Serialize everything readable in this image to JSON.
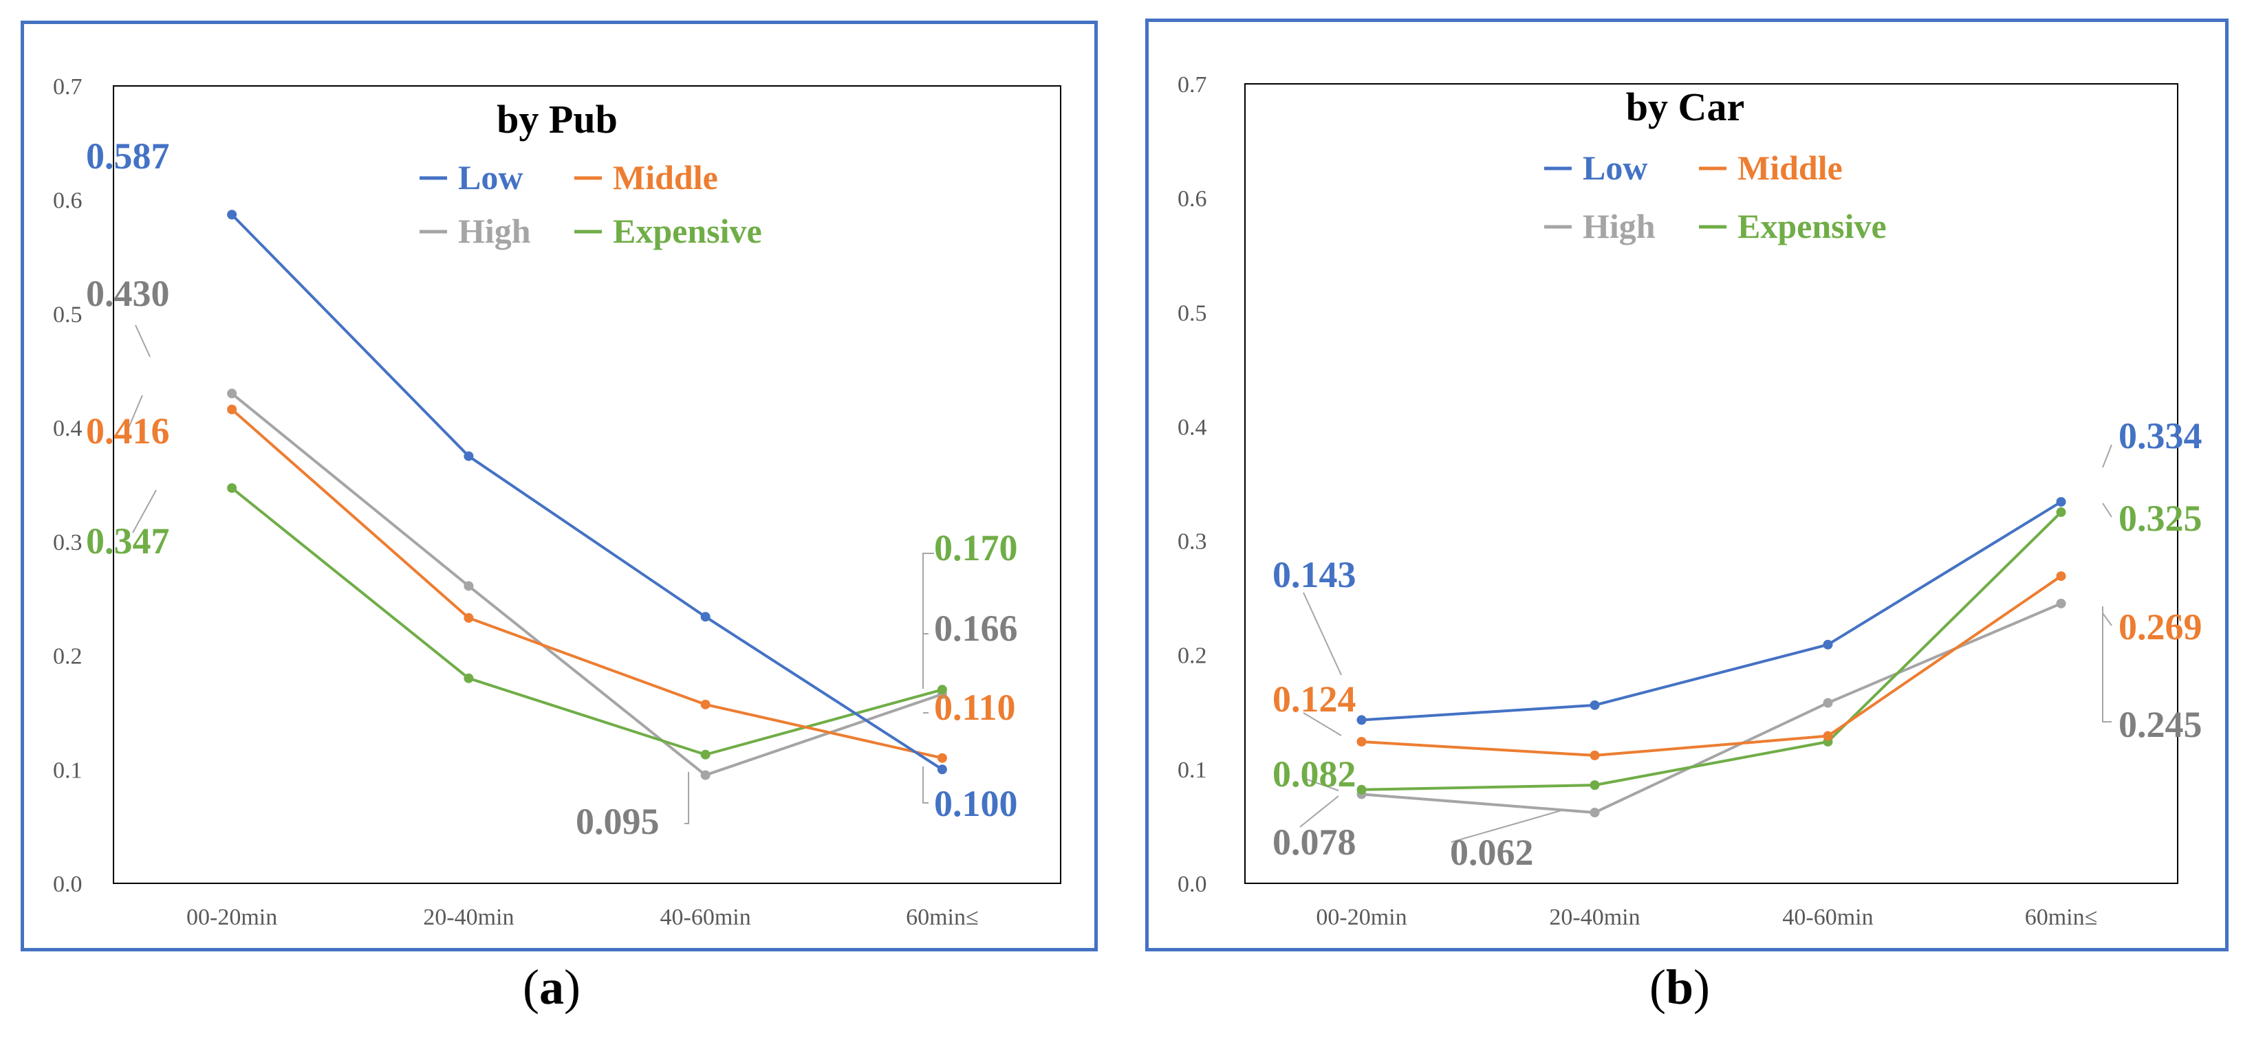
{
  "colors": {
    "Low": "#4472C4",
    "Middle": "#ED7D31",
    "High": "#A5A5A5",
    "Expensive": "#70AD47",
    "panel_border": "#4472C4"
  },
  "captions": {
    "a": "a",
    "b": "b"
  },
  "chart_data": [
    {
      "type": "line",
      "title": "by Pub",
      "categories": [
        "00-20min",
        "20-40min",
        "40-60min",
        "60min≤"
      ],
      "ylim": [
        0,
        0.7
      ],
      "yticks": [
        "0.0",
        "0.1",
        "0.2",
        "0.3",
        "0.4",
        "0.5",
        "0.6",
        "0.7"
      ],
      "legend": [
        "Low",
        "Middle",
        "High",
        "Expensive"
      ],
      "series": [
        {
          "name": "Low",
          "values": [
            0.587,
            0.375,
            0.234,
            0.1
          ]
        },
        {
          "name": "Middle",
          "values": [
            0.416,
            0.233,
            0.157,
            0.11
          ]
        },
        {
          "name": "High",
          "values": [
            0.43,
            0.261,
            0.095,
            0.166
          ]
        },
        {
          "name": "Expensive",
          "values": [
            0.347,
            0.18,
            0.113,
            0.17
          ]
        }
      ],
      "data_labels": [
        {
          "series": "Low",
          "index": 0,
          "text": "0.587"
        },
        {
          "series": "High",
          "index": 0,
          "text": "0.430"
        },
        {
          "series": "Middle",
          "index": 0,
          "text": "0.416"
        },
        {
          "series": "Expensive",
          "index": 0,
          "text": "0.347"
        },
        {
          "series": "Expensive",
          "index": 3,
          "text": "0.170"
        },
        {
          "series": "High",
          "index": 3,
          "text": "0.166"
        },
        {
          "series": "Middle",
          "index": 3,
          "text": "0.110"
        },
        {
          "series": "High",
          "index": 2,
          "text": "0.095"
        },
        {
          "series": "Low",
          "index": 3,
          "text": "0.100"
        }
      ]
    },
    {
      "type": "line",
      "title": "by Car",
      "categories": [
        "00-20min",
        "20-40min",
        "40-60min",
        "60min≤"
      ],
      "ylim": [
        0,
        0.7
      ],
      "yticks": [
        "0.0",
        "0.1",
        "0.2",
        "0.3",
        "0.4",
        "0.5",
        "0.6",
        "0.7"
      ],
      "legend": [
        "Low",
        "Middle",
        "High",
        "Expensive"
      ],
      "series": [
        {
          "name": "Low",
          "values": [
            0.143,
            0.156,
            0.209,
            0.334
          ]
        },
        {
          "name": "Middle",
          "values": [
            0.124,
            0.112,
            0.129,
            0.269
          ]
        },
        {
          "name": "High",
          "values": [
            0.078,
            0.062,
            0.158,
            0.245
          ]
        },
        {
          "name": "Expensive",
          "values": [
            0.082,
            0.086,
            0.124,
            0.325
          ]
        }
      ],
      "data_labels": [
        {
          "series": "Low",
          "index": 0,
          "text": "0.143"
        },
        {
          "series": "Middle",
          "index": 0,
          "text": "0.124"
        },
        {
          "series": "Expensive",
          "index": 0,
          "text": "0.082"
        },
        {
          "series": "High",
          "index": 0,
          "text": "0.078"
        },
        {
          "series": "High",
          "index": 1,
          "text": "0.062"
        },
        {
          "series": "Low",
          "index": 3,
          "text": "0.334"
        },
        {
          "series": "Expensive",
          "index": 3,
          "text": "0.325"
        },
        {
          "series": "Middle",
          "index": 3,
          "text": "0.269"
        },
        {
          "series": "High",
          "index": 3,
          "text": "0.245"
        }
      ]
    }
  ]
}
